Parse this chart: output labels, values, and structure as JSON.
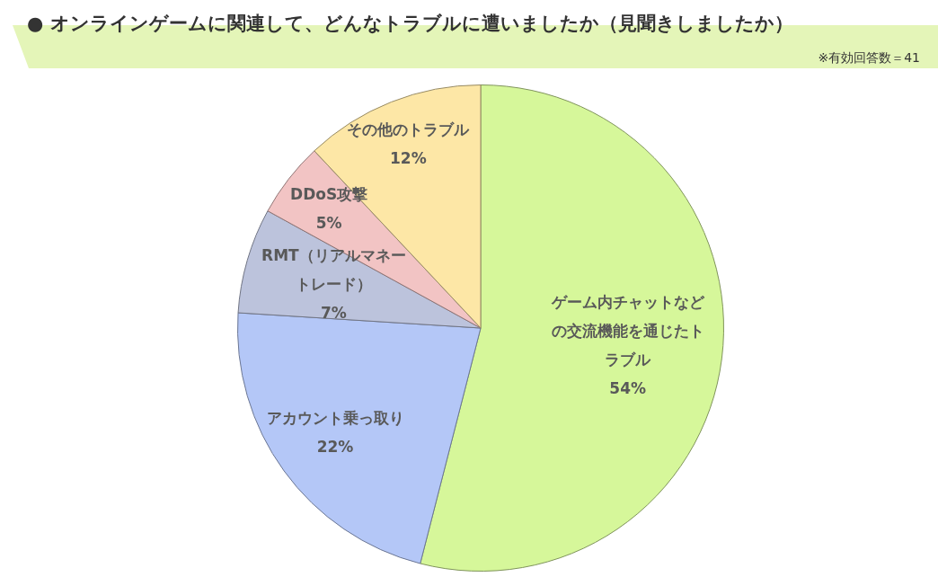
{
  "chart_data": {
    "type": "pie",
    "title": "● オンラインゲームに関連して、どんなトラブルに遭いましたか（見聞きしましたか）",
    "annotations": [
      "※有効回答数＝41"
    ],
    "categories": [
      "ゲーム内チャットなどの交流機能を通じたトラブル",
      "アカウント乗っ取り",
      "RMT（リアルマネートレード）",
      "DDoS攻撃",
      "その他のトラブル"
    ],
    "values": [
      54,
      22,
      7,
      5,
      12
    ],
    "colors": [
      "#d6f79a",
      "#b4c7f7",
      "#bcc3dc",
      "#f2c4c4",
      "#fde7a6"
    ],
    "value_labels": [
      "54%",
      "22%",
      "7%",
      "5%",
      "12%"
    ],
    "legend": false
  }
}
